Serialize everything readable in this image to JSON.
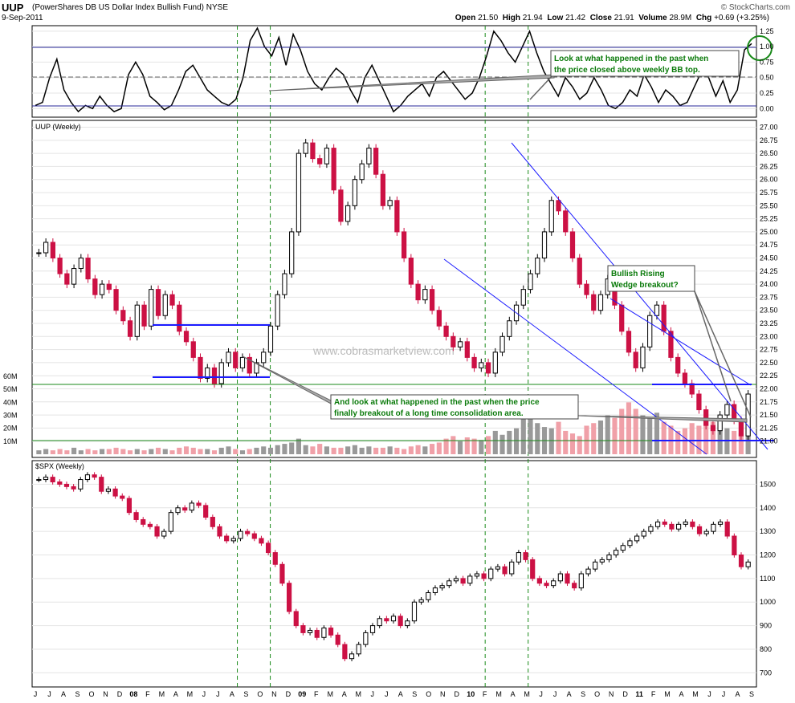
{
  "header": {
    "symbol": "UUP",
    "name": "(PowerShares DB US Dollar Index Bullish Fund)",
    "exchange": "NYSE",
    "date": "9-Sep-2011",
    "source": "© StockCharts.com",
    "quote": {
      "open_label": "Open",
      "open": "21.50",
      "high_label": "High",
      "high": "21.94",
      "low_label": "Low",
      "low": "21.42",
      "close_label": "Close",
      "close": "21.91",
      "volume_label": "Volume",
      "volume": "28.9M",
      "chg_label": "Chg",
      "chg": "+0.69 (+3.25%)"
    }
  },
  "watermark": "www.cobrasmarketview.com",
  "colors": {
    "up": "#000000",
    "down": "#cc1144",
    "trend": "#1a1aff",
    "support": "#1a8a1a",
    "note": "#0a7a0a",
    "vol_up": "#999999",
    "vol_down": "#f0a0a8",
    "event": "#1a8a1a"
  },
  "annotations": {
    "bb_note": [
      "Look at what happened in the past when",
      "the price closed above weekly BB top."
    ],
    "consolidation_note": [
      "And look at what happened in the past when the price",
      "finally breakout of a long time consolidation area."
    ],
    "wedge_note": [
      "Bullish Rising",
      "Wedge breakout?"
    ]
  },
  "chart_data": [
    {
      "type": "line",
      "title": "",
      "ylim": [
        -0.1,
        1.3
      ],
      "yticks": [
        "1.25",
        "1.00",
        "0.75",
        "0.50",
        "0.25",
        "0.00"
      ],
      "ytick_values": [
        1.25,
        1.0,
        0.75,
        0.5,
        0.25,
        0.0
      ],
      "series": [
        {
          "values": [
            0.05,
            0.1,
            0.5,
            0.8,
            0.3,
            0.1,
            -0.05,
            0.05,
            0.0,
            0.2,
            0.05,
            -0.05,
            0.0,
            0.55,
            0.75,
            0.55,
            0.2,
            0.1,
            -0.02,
            0.05,
            0.3,
            0.6,
            0.7,
            0.5,
            0.3,
            0.2,
            0.1,
            0.05,
            0.15,
            0.5,
            1.1,
            1.3,
            1.0,
            0.85,
            1.15,
            0.7,
            1.2,
            0.95,
            0.6,
            0.4,
            0.3,
            0.5,
            0.65,
            0.55,
            0.3,
            0.1,
            0.5,
            0.7,
            0.45,
            0.2,
            -0.05,
            0.05,
            0.2,
            0.3,
            0.4,
            0.2,
            0.5,
            0.6,
            0.45,
            0.3,
            0.15,
            0.25,
            0.5,
            0.85,
            1.25,
            1.1,
            0.9,
            0.75,
            1.0,
            1.25,
            0.9,
            0.6,
            0.4,
            0.2,
            0.5,
            0.35,
            0.15,
            0.25,
            0.5,
            0.3,
            0.05,
            0.0,
            0.1,
            0.3,
            0.2,
            0.55,
            0.35,
            0.1,
            0.3,
            0.2,
            0.05,
            0.1,
            0.35,
            0.6,
            0.5,
            0.2,
            0.45,
            0.1,
            0.3,
            0.95,
            1.05
          ]
        }
      ]
    },
    {
      "type": "candlestick",
      "title": "UUP (Weekly)",
      "ylim": [
        20.75,
        27.1
      ],
      "yticks": [
        "27.00",
        "26.75",
        "26.50",
        "26.25",
        "26.00",
        "25.75",
        "25.50",
        "25.25",
        "25.00",
        "24.75",
        "24.50",
        "24.25",
        "24.00",
        "23.75",
        "23.50",
        "23.25",
        "23.00",
        "22.75",
        "22.50",
        "22.25",
        "22.00",
        "21.75",
        "21.50",
        "21.25",
        "21.00"
      ],
      "ytick_values": [
        27.0,
        26.75,
        26.5,
        26.25,
        26.0,
        25.75,
        25.5,
        25.25,
        25.0,
        24.75,
        24.5,
        24.25,
        24.0,
        23.75,
        23.5,
        23.25,
        23.0,
        22.75,
        22.5,
        22.25,
        22.0,
        21.75,
        21.5,
        21.25,
        21.0
      ],
      "volume_ticks": [
        "60M",
        "50M",
        "40M",
        "30M",
        "20M",
        "10M"
      ],
      "volume_tick_values": [
        60,
        50,
        40,
        30,
        20,
        10
      ],
      "volume_max": 65,
      "series": [
        {
          "close": [
            24.6,
            24.8,
            24.5,
            24.2,
            24.0,
            24.3,
            24.5,
            24.1,
            23.8,
            24.0,
            23.9,
            23.5,
            23.3,
            23.0,
            23.6,
            23.2,
            23.9,
            23.4,
            23.8,
            23.6,
            23.1,
            22.9,
            22.6,
            22.2,
            22.4,
            22.1,
            22.5,
            22.7,
            22.4,
            22.6,
            22.3,
            22.5,
            22.7,
            23.2,
            23.8,
            24.2,
            25.0,
            26.5,
            26.7,
            26.4,
            26.3,
            26.6,
            25.8,
            25.2,
            25.5,
            26.0,
            26.3,
            26.6,
            26.1,
            25.5,
            25.6,
            25.0,
            24.5,
            24.0,
            23.7,
            23.9,
            23.5,
            23.2,
            23.0,
            22.8,
            22.9,
            22.6,
            22.4,
            22.5,
            22.3,
            22.7,
            23.0,
            23.3,
            23.6,
            23.9,
            24.2,
            24.5,
            25.0,
            25.6,
            25.4,
            25.0,
            24.5,
            24.0,
            23.8,
            23.5,
            23.8,
            24.1,
            23.6,
            23.1,
            22.7,
            22.4,
            22.8,
            23.4,
            23.6,
            23.1,
            22.6,
            22.3,
            22.1,
            21.9,
            21.6,
            21.3,
            21.2,
            21.5,
            21.7,
            21.4,
            21.1,
            21.9
          ]
        }
      ],
      "volume": [
        3,
        4,
        3,
        4,
        3,
        5,
        3,
        4,
        3,
        4,
        4,
        5,
        4,
        3,
        4,
        3,
        4,
        5,
        4,
        3,
        5,
        6,
        5,
        4,
        4,
        3,
        5,
        6,
        4,
        3,
        4,
        5,
        6,
        5,
        7,
        8,
        9,
        12,
        7,
        6,
        8,
        6,
        5,
        5,
        6,
        7,
        5,
        6,
        5,
        5,
        6,
        5,
        4,
        6,
        7,
        6,
        8,
        9,
        12,
        14,
        10,
        13,
        12,
        11,
        14,
        18,
        15,
        18,
        20,
        28,
        32,
        24,
        21,
        20,
        25,
        18,
        16,
        14,
        22,
        24,
        26,
        30,
        28,
        35,
        40,
        35,
        30,
        28,
        32,
        25,
        22,
        18,
        20,
        24,
        22,
        28,
        25,
        24,
        20,
        18,
        16,
        22
      ]
    },
    {
      "type": "candlestick",
      "title": "$SPX (Weekly)",
      "ylim": [
        650,
        1590
      ],
      "yticks": [
        "1500",
        "1400",
        "1300",
        "1200",
        "1100",
        "1000",
        "900",
        "800",
        "700"
      ],
      "ytick_values": [
        1500,
        1400,
        1300,
        1200,
        1100,
        1000,
        900,
        800,
        700
      ],
      "series": [
        {
          "close": [
            1520,
            1530,
            1510,
            1500,
            1490,
            1480,
            1520,
            1540,
            1530,
            1470,
            1480,
            1450,
            1440,
            1380,
            1350,
            1330,
            1320,
            1280,
            1300,
            1380,
            1400,
            1390,
            1420,
            1410,
            1360,
            1320,
            1280,
            1260,
            1270,
            1300,
            1290,
            1270,
            1250,
            1210,
            1160,
            1080,
            960,
            900,
            870,
            880,
            850,
            890,
            860,
            820,
            760,
            780,
            820,
            870,
            900,
            930,
            920,
            940,
            900,
            920,
            1000,
            1010,
            1040,
            1060,
            1070,
            1090,
            1100,
            1080,
            1110,
            1120,
            1100,
            1140,
            1150,
            1120,
            1170,
            1210,
            1180,
            1100,
            1080,
            1070,
            1090,
            1120,
            1080,
            1060,
            1120,
            1140,
            1170,
            1180,
            1200,
            1220,
            1240,
            1260,
            1280,
            1300,
            1320,
            1340,
            1330,
            1310,
            1330,
            1340,
            1320,
            1290,
            1300,
            1330,
            1340,
            1280,
            1200,
            1150,
            1170
          ]
        }
      ]
    }
  ],
  "x_axis": {
    "labels": [
      "J",
      "J",
      "A",
      "S",
      "O",
      "N",
      "D",
      "08",
      "F",
      "M",
      "A",
      "M",
      "J",
      "J",
      "A",
      "S",
      "O",
      "N",
      "D",
      "09",
      "F",
      "M",
      "A",
      "M",
      "J",
      "J",
      "A",
      "S",
      "O",
      "N",
      "D",
      "10",
      "F",
      "M",
      "A",
      "M",
      "J",
      "J",
      "A",
      "S",
      "O",
      "N",
      "D",
      "11",
      "F",
      "M",
      "A",
      "M",
      "J",
      "J",
      "A",
      "S"
    ],
    "year_labels": [
      "08",
      "09",
      "10",
      "11"
    ]
  }
}
